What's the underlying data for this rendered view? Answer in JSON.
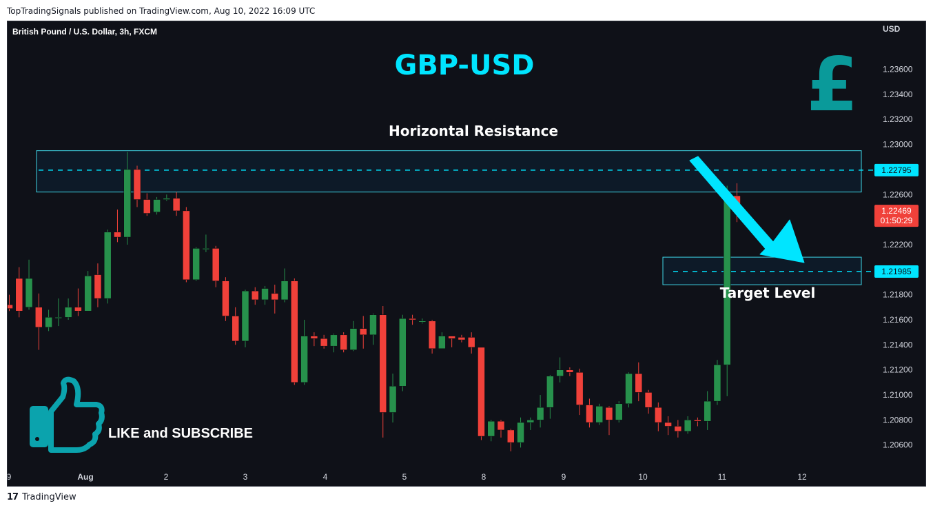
{
  "header": {
    "published": "TopTradingSignals published on TradingView.com, Aug 10, 2022 16:09 UTC"
  },
  "footer": {
    "logo": "17",
    "brand": "TradingView"
  },
  "chart": {
    "symbol": "British Pound / U.S. Dollar, 3h, FXCM",
    "currency": "USD",
    "title": "GBP-USD",
    "icon": "pound-sign-icon",
    "icon_glyph": "£",
    "resistance_label": "Horizontal Resistance",
    "target_label": "Target Level",
    "cta_label": "LIKE and SUBSCRIBE",
    "resistance_badge": "1.22795",
    "target_badge": "1.21985",
    "price_badge": "1.22469",
    "countdown_badge": "01:50:29",
    "colors": {
      "background": "#0f1118",
      "up": "#27914c",
      "down": "#f0413a",
      "accent": "#00e5ff",
      "icon": "#0a9a9a",
      "thumb": "#0ba3ad",
      "axis_text": "#d1d4dc",
      "zone_border": "#3fd6e6"
    }
  },
  "chart_data": {
    "type": "candlestick",
    "title": "GBP-USD",
    "y_ticks": [
      "1.23600",
      "1.23400",
      "1.23200",
      "1.23000",
      "1.22600",
      "1.22200",
      "1.21800",
      "1.21600",
      "1.21400",
      "1.21200",
      "1.21000",
      "1.20800",
      "1.20600"
    ],
    "x_ticks": [
      "9",
      "Aug",
      "2",
      "3",
      "4",
      "5",
      "8",
      "9",
      "10",
      "11",
      "12"
    ],
    "ylim": [
      1.2045,
      1.239
    ],
    "resistance_zone": [
      1.2262,
      1.2295
    ],
    "resistance_level": 1.22795,
    "target_zone": [
      1.2188,
      1.221
    ],
    "target_level": 1.21985,
    "candles": [
      [
        1.2172,
        1.2169,
        1.218,
        1.2167
      ],
      [
        1.2193,
        1.2167,
        1.2202,
        1.2162
      ],
      [
        1.217,
        1.2193,
        1.2208,
        1.2168
      ],
      [
        1.217,
        1.2154,
        1.2181,
        1.2136
      ],
      [
        1.2154,
        1.2162,
        1.2168,
        1.2151
      ],
      [
        1.2162,
        1.2162,
        1.2177,
        1.2155
      ],
      [
        1.2162,
        1.217,
        1.2177,
        1.216
      ],
      [
        1.217,
        1.2167,
        1.2185,
        1.2163
      ],
      [
        1.2167,
        1.2195,
        1.2199,
        1.2167
      ],
      [
        1.2196,
        1.2177,
        1.2205,
        1.217
      ],
      [
        1.2177,
        1.223,
        1.2232,
        1.2173
      ],
      [
        1.223,
        1.2226,
        1.2248,
        1.2222
      ],
      [
        1.2226,
        1.228,
        1.2294,
        1.222
      ],
      [
        1.228,
        1.2256,
        1.2283,
        1.225
      ],
      [
        1.2256,
        1.2245,
        1.2261,
        1.2243
      ],
      [
        1.2246,
        1.2256,
        1.2258,
        1.2244
      ],
      [
        1.2256,
        1.2257,
        1.226,
        1.2255
      ],
      [
        1.2257,
        1.2247,
        1.2262,
        1.2243
      ],
      [
        1.2247,
        1.2192,
        1.225,
        1.219
      ],
      [
        1.2192,
        1.2217,
        1.2218,
        1.2191
      ],
      [
        1.2217,
        1.2217,
        1.2228,
        1.2214
      ],
      [
        1.2217,
        1.2191,
        1.2219,
        1.2186
      ],
      [
        1.2191,
        1.2163,
        1.2194,
        1.2159
      ],
      [
        1.2163,
        1.2143,
        1.217,
        1.214
      ],
      [
        1.2143,
        1.2183,
        1.2184,
        1.2138
      ],
      [
        1.2183,
        1.2176,
        1.2186,
        1.2172
      ],
      [
        1.2176,
        1.2185,
        1.2187,
        1.2172
      ],
      [
        1.2181,
        1.2176,
        1.2188,
        1.2165
      ],
      [
        1.2176,
        1.2191,
        1.2201,
        1.2174
      ],
      [
        1.2191,
        1.211,
        1.2193,
        1.2108
      ],
      [
        1.211,
        1.2147,
        1.216,
        1.2108
      ],
      [
        1.2147,
        1.2145,
        1.215,
        1.2139
      ],
      [
        1.2145,
        1.2139,
        1.2148,
        1.2137
      ],
      [
        1.2139,
        1.2148,
        1.2149,
        1.2134
      ],
      [
        1.2148,
        1.2136,
        1.215,
        1.2134
      ],
      [
        1.2136,
        1.2153,
        1.2159,
        1.2135
      ],
      [
        1.2153,
        1.2148,
        1.2163,
        1.2137
      ],
      [
        1.2148,
        1.2164,
        1.2165,
        1.214
      ],
      [
        1.2164,
        1.2086,
        1.2171,
        1.2066
      ],
      [
        1.2086,
        1.2107,
        1.2117,
        1.2078
      ],
      [
        1.2107,
        1.2161,
        1.2164,
        1.2103
      ],
      [
        1.2161,
        1.216,
        1.2164,
        1.2156
      ],
      [
        1.2159,
        1.2159,
        1.2161,
        1.2157
      ],
      [
        1.2159,
        1.2137,
        1.216,
        1.2133
      ],
      [
        1.2137,
        1.2147,
        1.215,
        1.2137
      ],
      [
        1.2147,
        1.2145,
        1.2147,
        1.2138
      ],
      [
        1.2146,
        1.2144,
        1.2148,
        1.2142
      ],
      [
        1.2146,
        1.2138,
        1.215,
        1.2133
      ],
      [
        1.2138,
        1.2067,
        1.2138,
        1.2064
      ],
      [
        1.2067,
        1.2079,
        1.208,
        1.2063
      ],
      [
        1.2079,
        1.2072,
        1.208,
        1.2066
      ],
      [
        1.2072,
        1.2062,
        1.2073,
        1.2055
      ],
      [
        1.2062,
        1.2078,
        1.2082,
        1.2058
      ],
      [
        1.2078,
        1.208,
        1.2082,
        1.2072
      ],
      [
        1.208,
        1.209,
        1.21,
        1.2074
      ],
      [
        1.209,
        1.2115,
        1.2116,
        1.2081
      ],
      [
        1.2115,
        1.212,
        1.213,
        1.211
      ],
      [
        1.212,
        1.2118,
        1.2122,
        1.2115
      ],
      [
        1.2118,
        1.2092,
        1.2121,
        1.2084
      ],
      [
        1.2092,
        1.2078,
        1.2097,
        1.2074
      ],
      [
        1.2078,
        1.2091,
        1.2093,
        1.2076
      ],
      [
        1.209,
        1.208,
        1.2091,
        1.2068
      ],
      [
        1.208,
        1.2093,
        1.2095,
        1.2078
      ],
      [
        1.2093,
        1.2117,
        1.2118,
        1.209
      ],
      [
        1.2117,
        1.2102,
        1.2126,
        1.2095
      ],
      [
        1.2102,
        1.209,
        1.2104,
        1.2085
      ],
      [
        1.209,
        1.2078,
        1.2094,
        1.2071
      ],
      [
        1.2078,
        1.2075,
        1.2083,
        1.2068
      ],
      [
        1.2075,
        1.2071,
        1.208,
        1.2066
      ],
      [
        1.2071,
        1.208,
        1.2083,
        1.2069
      ],
      [
        1.208,
        1.2079,
        1.2082,
        1.2075
      ],
      [
        1.2079,
        1.2095,
        1.2103,
        1.2072
      ],
      [
        1.2095,
        1.2124,
        1.2128,
        1.2092
      ],
      [
        1.2124,
        1.2259,
        1.2267,
        1.2099
      ],
      [
        1.2259,
        1.2247,
        1.2269,
        1.2238
      ]
    ]
  }
}
